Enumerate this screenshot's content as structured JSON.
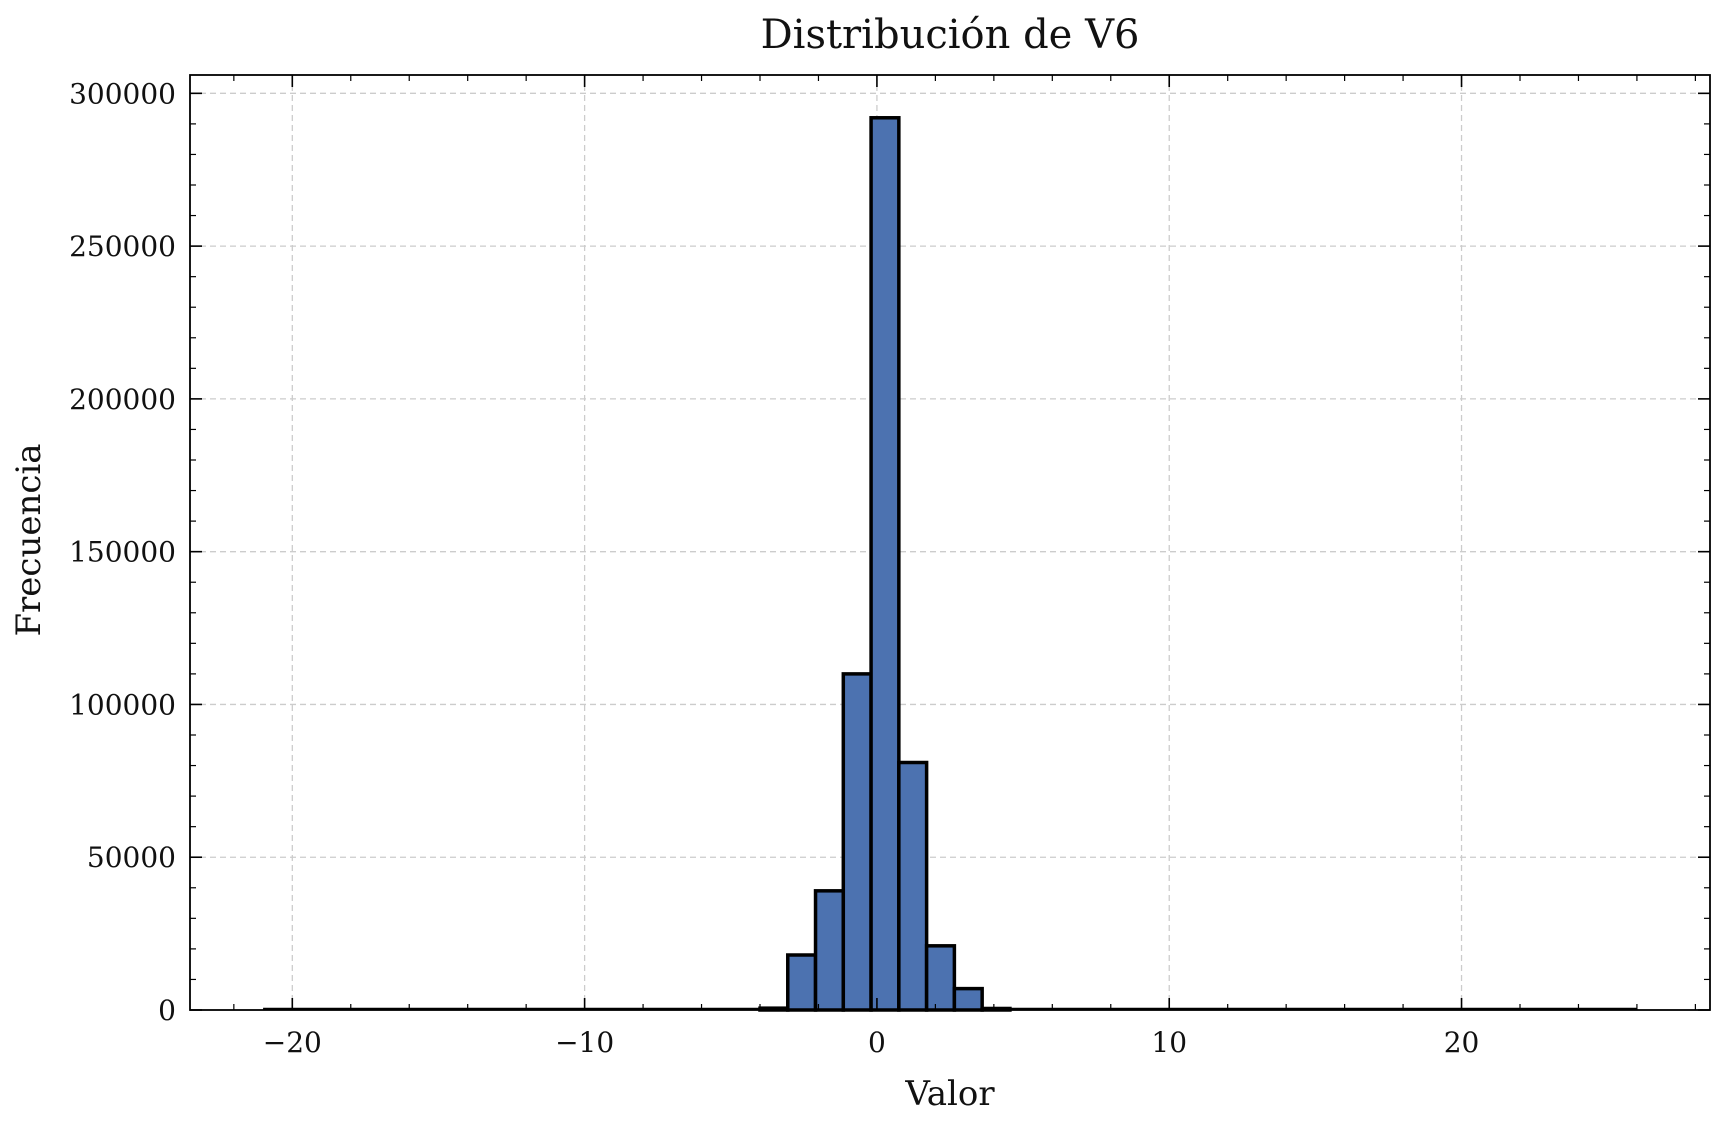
{
  "chart_data": {
    "type": "bar",
    "title": "Distribución de V6",
    "xlabel": "Valor",
    "ylabel": "Frecuencia",
    "xlim": [
      -23.5,
      28.5
    ],
    "ylim": [
      0,
      306000
    ],
    "xticks": [
      -20,
      -10,
      0,
      10,
      20
    ],
    "xtick_labels": [
      "−20",
      "−10",
      "0",
      "10",
      "20"
    ],
    "yticks": [
      0,
      50000,
      100000,
      150000,
      200000,
      250000,
      300000
    ],
    "ytick_labels": [
      "0",
      "50000",
      "100000",
      "150000",
      "200000",
      "250000",
      "300000"
    ],
    "grid": true,
    "bar_color": "#4c72b0",
    "edge_color": "#000000",
    "bin_width": 0.95,
    "bins": [
      {
        "x0": -21.0,
        "value": 0
      },
      {
        "x0": -4.0,
        "value": 600
      },
      {
        "x0": -3.05,
        "value": 18000
      },
      {
        "x0": -2.1,
        "value": 39000
      },
      {
        "x0": -1.15,
        "value": 110000
      },
      {
        "x0": -0.2,
        "value": 292000
      },
      {
        "x0": 0.75,
        "value": 81000
      },
      {
        "x0": 1.7,
        "value": 21000
      },
      {
        "x0": 2.65,
        "value": 7000
      },
      {
        "x0": 3.6,
        "value": 500
      },
      {
        "x0": 4.55,
        "value": 0
      }
    ],
    "baseline_range": [
      -21.0,
      26.0
    ]
  }
}
